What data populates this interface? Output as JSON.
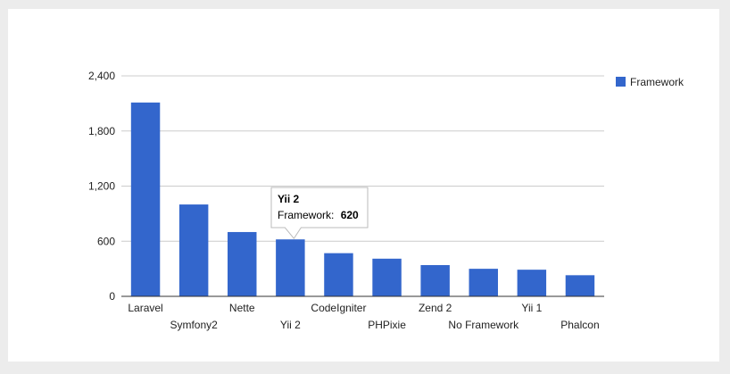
{
  "chart_data": {
    "type": "bar",
    "categories": [
      "Laravel",
      "Symfony2",
      "Nette",
      "Yii 2",
      "CodeIgniter",
      "PHPixie",
      "Zend 2",
      "No Framework",
      "Yii 1",
      "Phalcon"
    ],
    "series": [
      {
        "name": "Framework",
        "values": [
          2110,
          1000,
          700,
          620,
          470,
          410,
          340,
          300,
          290,
          230
        ]
      }
    ],
    "ylim": [
      0,
      2400
    ],
    "yticks": [
      "0",
      "600",
      "1,200",
      "1,800",
      "2,400"
    ],
    "ytick_values": [
      0,
      600,
      1200,
      1800,
      2400
    ],
    "grid": true,
    "legend": "right",
    "bar_color": "#3366cc",
    "tooltip": {
      "category": "Yii 2",
      "label": "Framework:",
      "value": "620"
    }
  }
}
